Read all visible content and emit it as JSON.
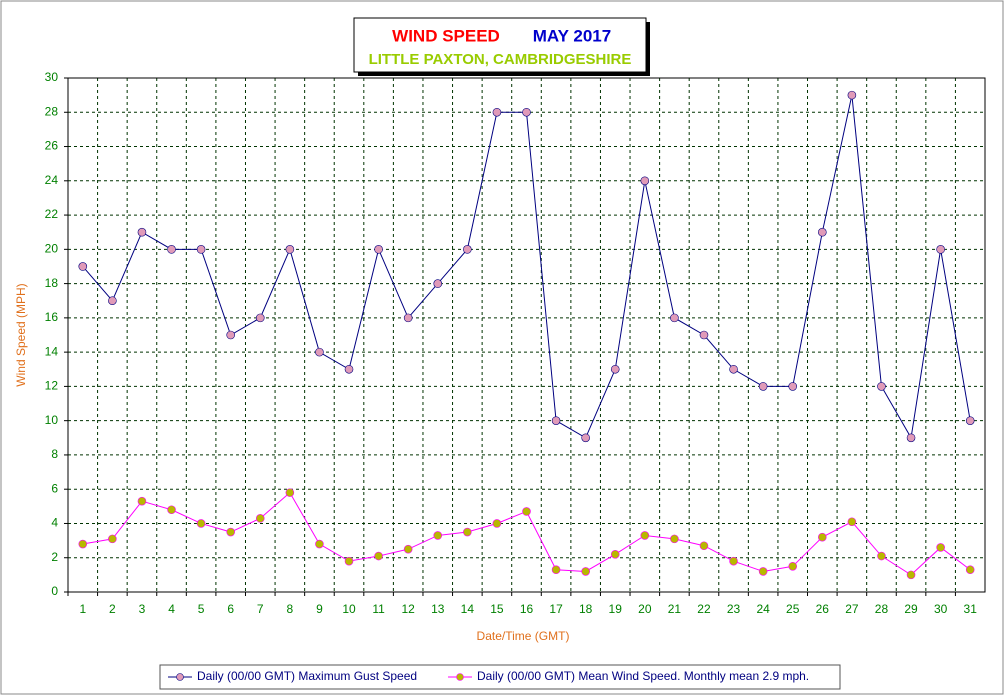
{
  "chart_data": {
    "type": "line",
    "title": "WIND SPEED",
    "period": "MAY 2017",
    "subtitle": "LITTLE PAXTON, CAMBRIDGESHIRE",
    "x_label": "Date/Time (GMT)",
    "y_label": "Wind Speed (MPH)",
    "categories": [
      "1",
      "2",
      "3",
      "4",
      "5",
      "6",
      "7",
      "8",
      "9",
      "10",
      "11",
      "12",
      "13",
      "14",
      "15",
      "16",
      "17",
      "18",
      "19",
      "20",
      "21",
      "22",
      "23",
      "24",
      "25",
      "26",
      "27",
      "28",
      "29",
      "30",
      "31"
    ],
    "series": [
      {
        "name": "Daily (00/00 GMT) Maximum Gust Speed",
        "color": "#000080",
        "marker_color": "#e09ab8",
        "values": [
          19,
          17,
          21,
          20,
          20,
          15,
          16,
          20,
          14,
          13,
          20,
          16,
          18,
          20,
          28,
          28,
          10,
          9,
          13,
          24,
          16,
          15,
          13,
          12,
          12,
          21,
          29,
          12,
          9,
          20,
          10
        ]
      },
      {
        "name": "Daily (00/00 GMT) Mean Wind Speed. Monthly mean 2.9 mph.",
        "color": "#ff00ff",
        "marker_color": "#b8b800",
        "values": [
          2.8,
          3.1,
          5.3,
          4.8,
          4.0,
          3.5,
          4.3,
          5.8,
          2.8,
          1.8,
          2.1,
          2.5,
          3.3,
          3.5,
          4.0,
          4.7,
          1.3,
          1.2,
          2.2,
          3.3,
          3.1,
          2.7,
          1.8,
          1.2,
          1.5,
          3.2,
          4.1,
          2.1,
          1.0,
          2.6,
          1.3
        ]
      }
    ],
    "ylim": [
      0,
      30
    ],
    "yticks": [
      0,
      2,
      4,
      6,
      8,
      10,
      12,
      14,
      16,
      18,
      20,
      22,
      24,
      26,
      28,
      30
    ],
    "grid": true
  }
}
